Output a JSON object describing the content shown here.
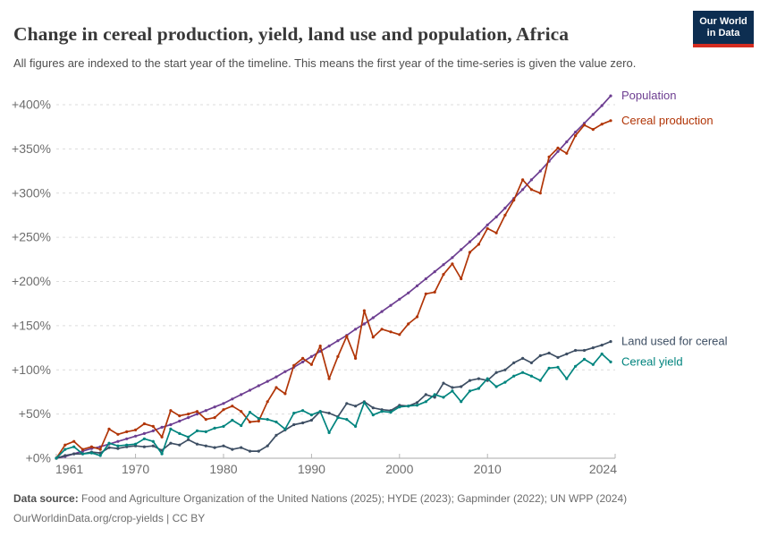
{
  "header": {
    "title": "Change in cereal production, yield, land use and population, Africa",
    "subtitle": "All figures are indexed to the start year of the timeline. This means the first year of the time-series is given the value zero.",
    "logo": {
      "line1": "Our World",
      "line2": "in Data"
    }
  },
  "footer": {
    "source_label": "Data source:",
    "source_text": "Food and Agriculture Organization of the United Nations (2025); HYDE (2023); Gapminder (2022); UN WPP (2024)",
    "url_line": "OurWorldinData.org/crop-yields | CC BY"
  },
  "chart_data": {
    "type": "line",
    "title": "Change in cereal production, yield, land use and population, Africa",
    "xlabel": "",
    "ylabel": "",
    "x_range": [
      1961,
      2024
    ],
    "ylim": [
      0,
      400
    ],
    "grid": "horizontal-dashed",
    "legend_position": "right-of-line-ends",
    "x_ticks": [
      1961,
      1970,
      1980,
      1990,
      2000,
      2010,
      2024
    ],
    "y_ticks": [
      {
        "value": 0,
        "label": "+0%"
      },
      {
        "value": 50,
        "label": "+50%"
      },
      {
        "value": 100,
        "label": "+100%"
      },
      {
        "value": 150,
        "label": "+150%"
      },
      {
        "value": 200,
        "label": "+200%"
      },
      {
        "value": 250,
        "label": "+250%"
      },
      {
        "value": 300,
        "label": "+300%"
      },
      {
        "value": 350,
        "label": "+350%"
      },
      {
        "value": 400,
        "label": "+400%"
      }
    ],
    "x": [
      1961,
      1962,
      1963,
      1964,
      1965,
      1966,
      1967,
      1968,
      1969,
      1970,
      1971,
      1972,
      1973,
      1974,
      1975,
      1976,
      1977,
      1978,
      1979,
      1980,
      1981,
      1982,
      1983,
      1984,
      1985,
      1986,
      1987,
      1988,
      1989,
      1990,
      1991,
      1992,
      1993,
      1994,
      1995,
      1996,
      1997,
      1998,
      1999,
      2000,
      2001,
      2002,
      2003,
      2004,
      2005,
      2006,
      2007,
      2008,
      2009,
      2010,
      2011,
      2012,
      2013,
      2014,
      2015,
      2016,
      2017,
      2018,
      2019,
      2020,
      2021,
      2022,
      2023,
      2024
    ],
    "series": [
      {
        "name": "Population",
        "color": "#6d3e91",
        "unit": "% change since 1961",
        "values": [
          0,
          2,
          5,
          8,
          11,
          13,
          16,
          19,
          22,
          25,
          28,
          31,
          35,
          38,
          42,
          46,
          50,
          54,
          58,
          62,
          67,
          72,
          77,
          82,
          87,
          92,
          98,
          103,
          109,
          115,
          121,
          127,
          133,
          139,
          146,
          152,
          159,
          166,
          173,
          180,
          187,
          195,
          203,
          211,
          219,
          227,
          236,
          245,
          254,
          264,
          273,
          283,
          294,
          304,
          315,
          325,
          336,
          347,
          358,
          369,
          379,
          389,
          399,
          410
        ]
      },
      {
        "name": "Cereal production",
        "color": "#b13507",
        "unit": "% change since 1961",
        "values": [
          0,
          15,
          19,
          10,
          13,
          10,
          33,
          27,
          30,
          32,
          39,
          36,
          24,
          54,
          48,
          50,
          53,
          44,
          46,
          55,
          59,
          53,
          41,
          42,
          64,
          80,
          73,
          105,
          113,
          106,
          127,
          90,
          115,
          138,
          113,
          167,
          137,
          146,
          143,
          140,
          152,
          160,
          186,
          188,
          208,
          220,
          203,
          233,
          242,
          260,
          255,
          275,
          292,
          315,
          304,
          300,
          341,
          351,
          345,
          365,
          377,
          372,
          378,
          382
        ]
      },
      {
        "name": "Land used for cereal",
        "color": "#3d4e63",
        "unit": "% change since 1961",
        "values": [
          0,
          3,
          5,
          5,
          7,
          6,
          12,
          11,
          13,
          14,
          13,
          14,
          9,
          17,
          15,
          21,
          16,
          14,
          12,
          14,
          10,
          12,
          8,
          8,
          14,
          26,
          32,
          38,
          40,
          43,
          53,
          51,
          47,
          62,
          59,
          64,
          57,
          55,
          54,
          60,
          59,
          63,
          72,
          69,
          85,
          80,
          81,
          88,
          90,
          88,
          97,
          100,
          108,
          113,
          108,
          116,
          119,
          114,
          118,
          122,
          122,
          125,
          128,
          132
        ]
      },
      {
        "name": "Cereal yield",
        "color": "#00847e",
        "unit": "% change since 1961",
        "values": [
          0,
          10,
          13,
          5,
          6,
          3,
          17,
          14,
          15,
          16,
          22,
          19,
          5,
          33,
          28,
          24,
          31,
          30,
          34,
          36,
          43,
          37,
          52,
          45,
          44,
          41,
          33,
          51,
          54,
          49,
          53,
          29,
          46,
          44,
          36,
          63,
          49,
          53,
          52,
          58,
          59,
          60,
          64,
          72,
          69,
          76,
          64,
          76,
          79,
          90,
          81,
          86,
          93,
          97,
          93,
          88,
          102,
          103,
          90,
          104,
          112,
          106,
          118,
          109
        ]
      }
    ]
  }
}
